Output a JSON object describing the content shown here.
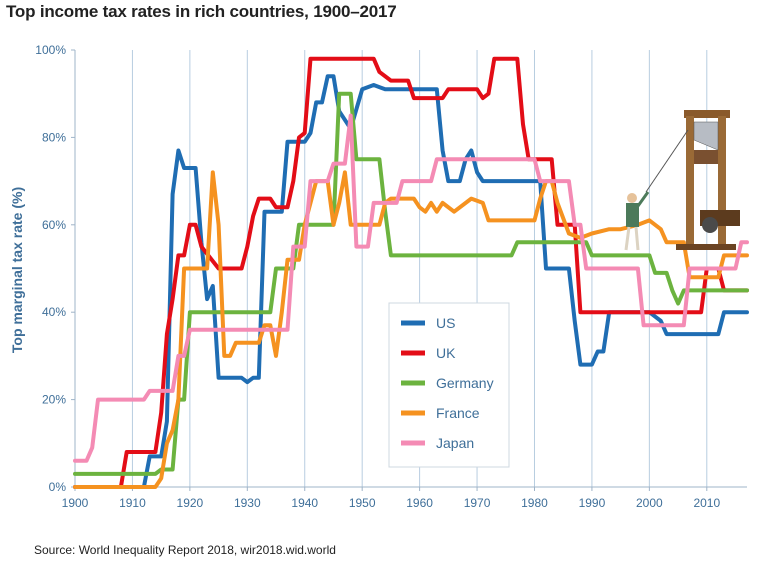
{
  "title": "Top income tax rates in rich countries, 1900–2017",
  "source": "Source: World Inequality Report 2018, wir2018.wid.world",
  "chart_data": {
    "type": "line",
    "ylabel": "Top marginal tax rate (%)",
    "xlim": [
      1900,
      2017
    ],
    "ylim": [
      0,
      100
    ],
    "xticks": [
      1900,
      1910,
      1920,
      1930,
      1940,
      1950,
      1960,
      1970,
      1980,
      1990,
      2000,
      2010
    ],
    "yticks": [
      0,
      20,
      40,
      60,
      80,
      100
    ],
    "ytick_labels": [
      "0%",
      "20%",
      "40%",
      "60%",
      "80%",
      "100%"
    ],
    "grid": "vertical",
    "legend_position": "center-right",
    "series": [
      {
        "name": "US",
        "color": "#1f6db3",
        "points": [
          [
            1900,
            0
          ],
          [
            1912,
            0
          ],
          [
            1913,
            7
          ],
          [
            1915,
            7
          ],
          [
            1916,
            15
          ],
          [
            1917,
            67
          ],
          [
            1918,
            77
          ],
          [
            1919,
            73
          ],
          [
            1921,
            73
          ],
          [
            1922,
            56
          ],
          [
            1923,
            43
          ],
          [
            1924,
            46
          ],
          [
            1925,
            25
          ],
          [
            1929,
            25
          ],
          [
            1930,
            24
          ],
          [
            1931,
            25
          ],
          [
            1932,
            25
          ],
          [
            1933,
            63
          ],
          [
            1936,
            63
          ],
          [
            1937,
            79
          ],
          [
            1940,
            79
          ],
          [
            1941,
            81
          ],
          [
            1942,
            88
          ],
          [
            1943,
            88
          ],
          [
            1944,
            94
          ],
          [
            1945,
            94
          ],
          [
            1946,
            86
          ],
          [
            1948,
            82
          ],
          [
            1950,
            91
          ],
          [
            1952,
            92
          ],
          [
            1954,
            91
          ],
          [
            1963,
            91
          ],
          [
            1964,
            77
          ],
          [
            1965,
            70
          ],
          [
            1967,
            70
          ],
          [
            1968,
            75
          ],
          [
            1969,
            77
          ],
          [
            1970,
            72
          ],
          [
            1971,
            70
          ],
          [
            1981,
            70
          ],
          [
            1982,
            50
          ],
          [
            1986,
            50
          ],
          [
            1987,
            38
          ],
          [
            1988,
            28
          ],
          [
            1990,
            28
          ],
          [
            1991,
            31
          ],
          [
            1992,
            31
          ],
          [
            1993,
            40
          ],
          [
            2000,
            40
          ],
          [
            2001,
            39
          ],
          [
            2002,
            38
          ],
          [
            2003,
            35
          ],
          [
            2012,
            35
          ],
          [
            2013,
            40
          ],
          [
            2017,
            40
          ]
        ]
      },
      {
        "name": "UK",
        "color": "#e30d17",
        "points": [
          [
            1900,
            0
          ],
          [
            1908,
            0
          ],
          [
            1909,
            8
          ],
          [
            1914,
            8
          ],
          [
            1915,
            17
          ],
          [
            1916,
            35
          ],
          [
            1917,
            43
          ],
          [
            1918,
            53
          ],
          [
            1919,
            53
          ],
          [
            1920,
            60
          ],
          [
            1921,
            60
          ],
          [
            1922,
            55
          ],
          [
            1925,
            50
          ],
          [
            1929,
            50
          ],
          [
            1930,
            55
          ],
          [
            1931,
            62
          ],
          [
            1932,
            66
          ],
          [
            1934,
            66
          ],
          [
            1935,
            64
          ],
          [
            1937,
            64
          ],
          [
            1938,
            70
          ],
          [
            1939,
            80
          ],
          [
            1940,
            81
          ],
          [
            1941,
            98
          ],
          [
            1952,
            98
          ],
          [
            1953,
            95
          ],
          [
            1955,
            93
          ],
          [
            1958,
            93
          ],
          [
            1959,
            89
          ],
          [
            1964,
            89
          ],
          [
            1965,
            91
          ],
          [
            1970,
            91
          ],
          [
            1971,
            89
          ],
          [
            1972,
            90
          ],
          [
            1973,
            98
          ],
          [
            1977,
            98
          ],
          [
            1978,
            83
          ],
          [
            1979,
            75
          ],
          [
            1983,
            75
          ],
          [
            1984,
            60
          ],
          [
            1987,
            60
          ],
          [
            1988,
            40
          ],
          [
            2009,
            40
          ],
          [
            2010,
            50
          ],
          [
            2012,
            50
          ],
          [
            2013,
            45
          ],
          [
            2017,
            45
          ]
        ]
      },
      {
        "name": "Germany",
        "color": "#6cb33f",
        "points": [
          [
            1900,
            3
          ],
          [
            1914,
            3
          ],
          [
            1915,
            4
          ],
          [
            1917,
            4
          ],
          [
            1918,
            20
          ],
          [
            1919,
            20
          ],
          [
            1920,
            40
          ],
          [
            1934,
            40
          ],
          [
            1935,
            50
          ],
          [
            1938,
            50
          ],
          [
            1939,
            60
          ],
          [
            1945,
            60
          ],
          [
            1946,
            90
          ],
          [
            1948,
            90
          ],
          [
            1949,
            75
          ],
          [
            1953,
            75
          ],
          [
            1954,
            63
          ],
          [
            1955,
            53
          ],
          [
            1976,
            53
          ],
          [
            1977,
            56
          ],
          [
            1989,
            56
          ],
          [
            1990,
            53
          ],
          [
            2000,
            53
          ],
          [
            2001,
            49
          ],
          [
            2003,
            49
          ],
          [
            2004,
            45
          ],
          [
            2005,
            42
          ],
          [
            2006,
            45
          ],
          [
            2007,
            45
          ],
          [
            2008,
            45
          ],
          [
            2017,
            45
          ]
        ]
      },
      {
        "name": "France",
        "color": "#f59220",
        "points": [
          [
            1900,
            0
          ],
          [
            1914,
            0
          ],
          [
            1915,
            2
          ],
          [
            1916,
            10
          ],
          [
            1917,
            13
          ],
          [
            1918,
            20
          ],
          [
            1919,
            50
          ],
          [
            1923,
            50
          ],
          [
            1924,
            72
          ],
          [
            1925,
            60
          ],
          [
            1926,
            30
          ],
          [
            1927,
            30
          ],
          [
            1928,
            33
          ],
          [
            1932,
            33
          ],
          [
            1933,
            37
          ],
          [
            1934,
            37
          ],
          [
            1935,
            30
          ],
          [
            1936,
            40
          ],
          [
            1937,
            52
          ],
          [
            1939,
            52
          ],
          [
            1940,
            60
          ],
          [
            1941,
            65
          ],
          [
            1942,
            70
          ],
          [
            1944,
            70
          ],
          [
            1945,
            60
          ],
          [
            1946,
            65
          ],
          [
            1947,
            72
          ],
          [
            1948,
            60
          ],
          [
            1953,
            60
          ],
          [
            1954,
            65
          ],
          [
            1955,
            66
          ],
          [
            1959,
            66
          ],
          [
            1960,
            64
          ],
          [
            1961,
            63
          ],
          [
            1962,
            65
          ],
          [
            1963,
            63
          ],
          [
            1964,
            65
          ],
          [
            1966,
            63
          ],
          [
            1969,
            66
          ],
          [
            1971,
            65
          ],
          [
            1972,
            61
          ],
          [
            1980,
            61
          ],
          [
            1981,
            66
          ],
          [
            1982,
            70
          ],
          [
            1983,
            70
          ],
          [
            1984,
            65
          ],
          [
            1986,
            58
          ],
          [
            1988,
            57
          ],
          [
            1990,
            58
          ],
          [
            1993,
            59
          ],
          [
            1995,
            59
          ],
          [
            1998,
            60
          ],
          [
            2000,
            61
          ],
          [
            2002,
            59
          ],
          [
            2003,
            56
          ],
          [
            2006,
            56
          ],
          [
            2007,
            48
          ],
          [
            2012,
            48
          ],
          [
            2013,
            53
          ],
          [
            2017,
            53
          ]
        ]
      },
      {
        "name": "Japan",
        "color": "#f48bb4",
        "points": [
          [
            1900,
            6
          ],
          [
            1902,
            6
          ],
          [
            1903,
            9
          ],
          [
            1904,
            20
          ],
          [
            1912,
            20
          ],
          [
            1913,
            22
          ],
          [
            1917,
            22
          ],
          [
            1918,
            30
          ],
          [
            1919,
            30
          ],
          [
            1920,
            36
          ],
          [
            1937,
            36
          ],
          [
            1938,
            55
          ],
          [
            1940,
            55
          ],
          [
            1941,
            70
          ],
          [
            1944,
            70
          ],
          [
            1945,
            74
          ],
          [
            1947,
            74
          ],
          [
            1948,
            85
          ],
          [
            1949,
            55
          ],
          [
            1951,
            55
          ],
          [
            1952,
            65
          ],
          [
            1956,
            65
          ],
          [
            1957,
            70
          ],
          [
            1962,
            70
          ],
          [
            1963,
            75
          ],
          [
            1976,
            75
          ],
          [
            1980,
            75
          ],
          [
            1981,
            70
          ],
          [
            1986,
            70
          ],
          [
            1987,
            60
          ],
          [
            1988,
            60
          ],
          [
            1989,
            50
          ],
          [
            1998,
            50
          ],
          [
            1999,
            37
          ],
          [
            2006,
            37
          ],
          [
            2007,
            50
          ],
          [
            2015,
            50
          ],
          [
            2016,
            56
          ],
          [
            2017,
            56
          ]
        ]
      }
    ]
  }
}
